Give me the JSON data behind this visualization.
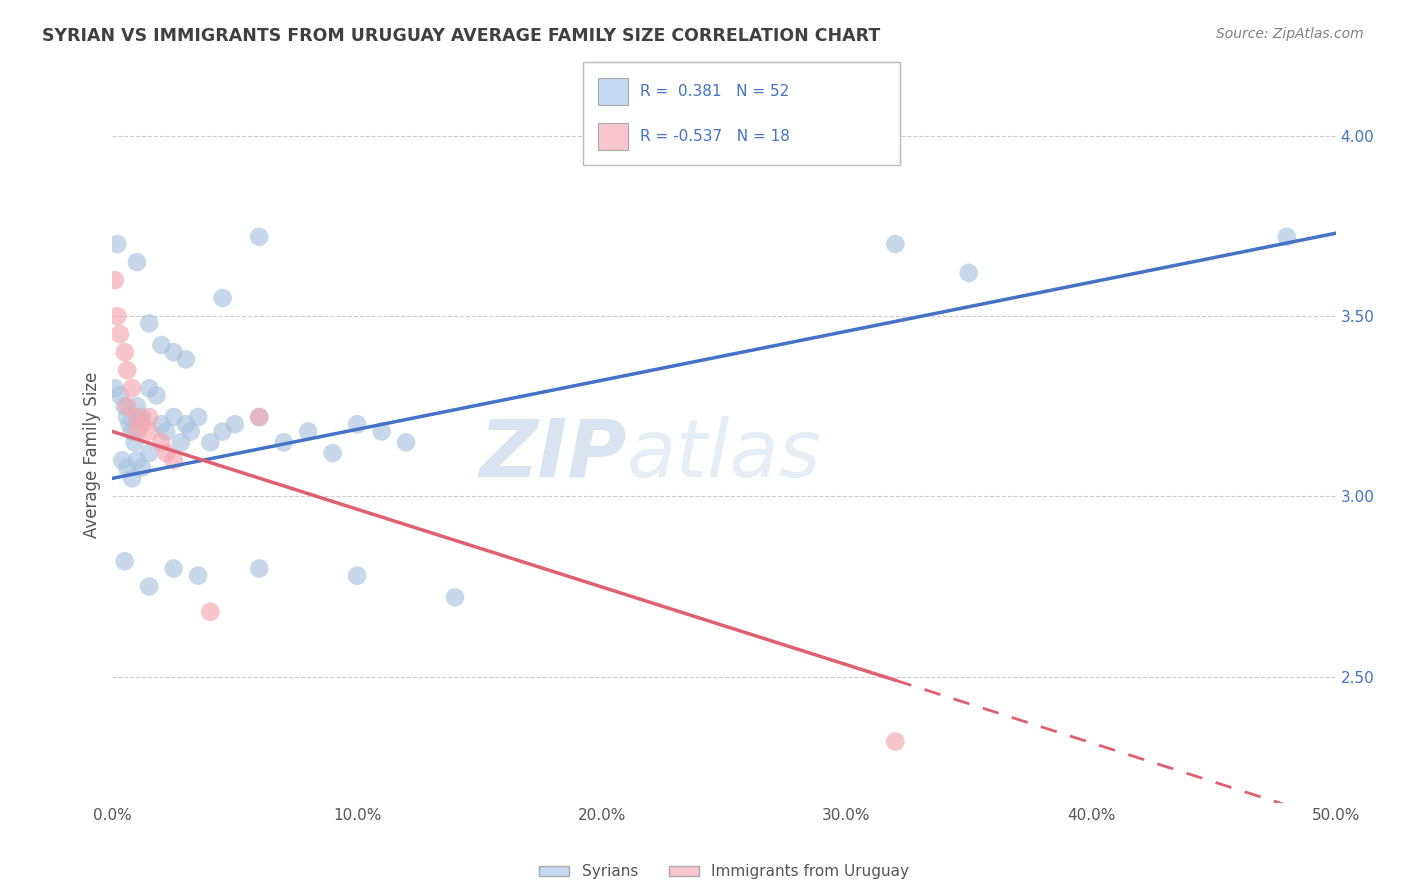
{
  "title": "SYRIAN VS IMMIGRANTS FROM URUGUAY AVERAGE FAMILY SIZE CORRELATION CHART",
  "source": "Source: ZipAtlas.com",
  "ylabel": "Average Family Size",
  "watermark": "ZIPatlas",
  "r_syrian": 0.381,
  "n_syrian": 52,
  "r_uruguay": -0.537,
  "n_uruguay": 18,
  "xlim": [
    0.0,
    0.5
  ],
  "ylim": [
    2.15,
    4.08
  ],
  "yticks_right": [
    2.5,
    3.0,
    3.5,
    4.0
  ],
  "syrian_color": "#a8c4e0",
  "uruguay_color": "#f4a7b0",
  "syrian_line_color": "#4472c4",
  "uruguay_line_color": "#e06070",
  "legend_box_syrian": "#c5d9f1",
  "legend_box_uruguay": "#f9c6cf",
  "background_color": "#ffffff",
  "title_color": "#404040",
  "source_color": "#808080",
  "syrian_line": [
    0.0,
    3.05,
    0.5,
    3.73
  ],
  "uruguay_line_solid": [
    0.0,
    3.18,
    0.32,
    2.49
  ],
  "uruguay_line_dashed": [
    0.32,
    2.49,
    0.5,
    2.1
  ],
  "syrian_scatter": [
    [
      0.002,
      3.7
    ],
    [
      0.01,
      3.65
    ],
    [
      0.015,
      3.48
    ],
    [
      0.02,
      3.42
    ],
    [
      0.025,
      3.4
    ],
    [
      0.03,
      3.38
    ],
    [
      0.045,
      3.55
    ],
    [
      0.06,
      3.72
    ],
    [
      0.32,
      3.7
    ],
    [
      0.48,
      3.72
    ],
    [
      0.35,
      3.62
    ],
    [
      0.001,
      3.3
    ],
    [
      0.003,
      3.28
    ],
    [
      0.005,
      3.25
    ],
    [
      0.006,
      3.22
    ],
    [
      0.007,
      3.2
    ],
    [
      0.008,
      3.18
    ],
    [
      0.009,
      3.15
    ],
    [
      0.01,
      3.25
    ],
    [
      0.012,
      3.22
    ],
    [
      0.015,
      3.3
    ],
    [
      0.018,
      3.28
    ],
    [
      0.02,
      3.2
    ],
    [
      0.022,
      3.18
    ],
    [
      0.025,
      3.22
    ],
    [
      0.028,
      3.15
    ],
    [
      0.03,
      3.2
    ],
    [
      0.032,
      3.18
    ],
    [
      0.035,
      3.22
    ],
    [
      0.04,
      3.15
    ],
    [
      0.045,
      3.18
    ],
    [
      0.05,
      3.2
    ],
    [
      0.06,
      3.22
    ],
    [
      0.07,
      3.15
    ],
    [
      0.08,
      3.18
    ],
    [
      0.09,
      3.12
    ],
    [
      0.1,
      3.2
    ],
    [
      0.11,
      3.18
    ],
    [
      0.12,
      3.15
    ],
    [
      0.004,
      3.1
    ],
    [
      0.006,
      3.08
    ],
    [
      0.008,
      3.05
    ],
    [
      0.01,
      3.1
    ],
    [
      0.012,
      3.08
    ],
    [
      0.015,
      3.12
    ],
    [
      0.005,
      2.82
    ],
    [
      0.015,
      2.75
    ],
    [
      0.025,
      2.8
    ],
    [
      0.035,
      2.78
    ],
    [
      0.06,
      2.8
    ],
    [
      0.1,
      2.78
    ],
    [
      0.14,
      2.72
    ]
  ],
  "uruguay_scatter": [
    [
      0.001,
      3.6
    ],
    [
      0.002,
      3.5
    ],
    [
      0.003,
      3.45
    ],
    [
      0.005,
      3.4
    ],
    [
      0.006,
      3.35
    ],
    [
      0.008,
      3.3
    ],
    [
      0.01,
      3.22
    ],
    [
      0.012,
      3.2
    ],
    [
      0.015,
      3.18
    ],
    [
      0.02,
      3.15
    ],
    [
      0.022,
      3.12
    ],
    [
      0.025,
      3.1
    ],
    [
      0.006,
      3.25
    ],
    [
      0.01,
      3.18
    ],
    [
      0.015,
      3.22
    ],
    [
      0.06,
      3.22
    ],
    [
      0.32,
      2.32
    ],
    [
      0.04,
      2.68
    ]
  ]
}
